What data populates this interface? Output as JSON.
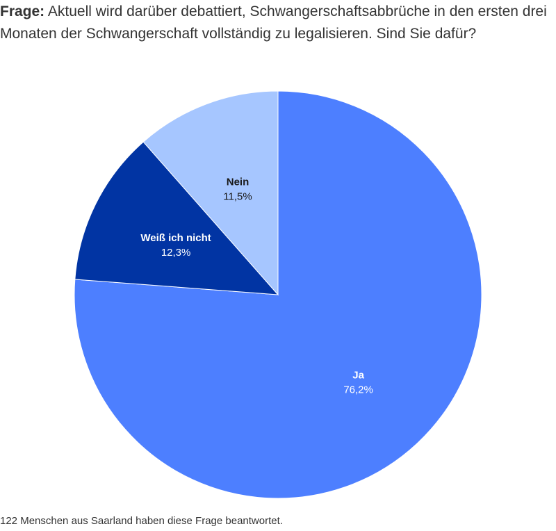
{
  "question": {
    "label": "Frage:",
    "text": "Aktuell wird darüber debattiert, Schwangerschaftsabbrüche in den ersten drei Monaten der Schwangerschaft vollständig zu legalisieren. Sind Sie dafür?"
  },
  "chart_data": {
    "type": "pie",
    "start_angle_deg": 0,
    "direction": "clockwise",
    "slices": [
      {
        "label": "Ja",
        "value": 76.2,
        "value_label": "76,2%",
        "color": "#4d7fff",
        "text_color": "#ffffff"
      },
      {
        "label": "Weiß ich nicht",
        "value": 12.3,
        "value_label": "12,3%",
        "color": "#0134a3",
        "text_color": "#ffffff"
      },
      {
        "label": "Nein",
        "value": 11.5,
        "value_label": "11,5%",
        "color": "#a6c6ff",
        "text_color": "#1a1a1a"
      }
    ]
  },
  "footer": {
    "text": "122 Menschen aus Saarland haben diese Frage beantwortet."
  }
}
